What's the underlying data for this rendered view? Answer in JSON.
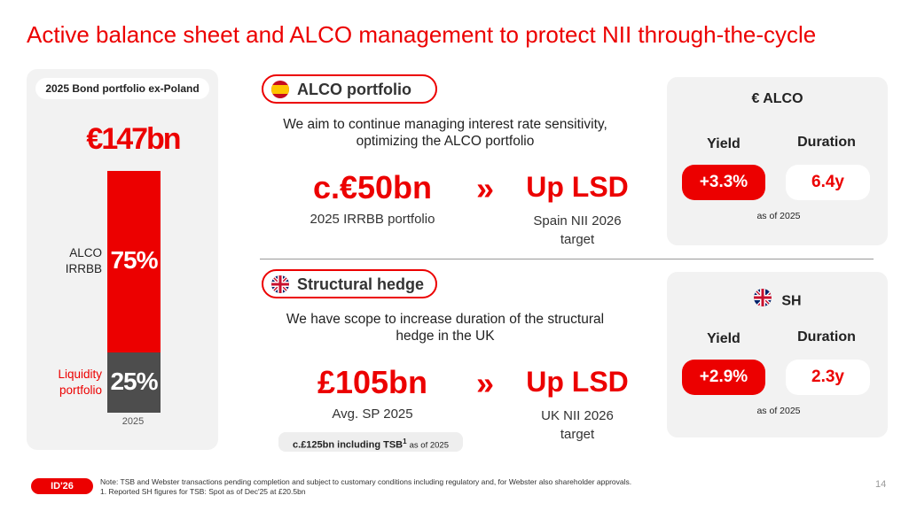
{
  "header": {
    "title": "Active balance sheet and ALCO management to protect NII through-the-cycle"
  },
  "portfolio_chart": {
    "title": "2025 Bond portfolio ex-Poland",
    "total": "€147bn",
    "categories": [
      "2025"
    ],
    "series": [
      {
        "name": "Liquidity portfolio",
        "color": "#4d4d4d",
        "values": [
          25
        ],
        "value_labels": [
          "25%"
        ]
      },
      {
        "name": "ALCO IRRBB",
        "color": "#ec0000",
        "values": [
          75
        ],
        "value_labels": [
          "75%"
        ]
      }
    ]
  },
  "sections": [
    {
      "pill": "ALCO portfolio",
      "text": "We aim to continue managing interest rate sensitivity, optimizing the ALCO portfolio",
      "big_value": "c.€50bn",
      "big_caption": "2025 IRRBB portfolio",
      "arrow": "»",
      "target": "Up LSD",
      "target_caption": "Spain NII 2026 target",
      "box": {
        "title": "€ ALCO",
        "yield_label": "Yield",
        "duration_label": "Duration",
        "yield": "+3.3%",
        "duration": "6.4y",
        "date": "as of 2025"
      }
    },
    {
      "pill": "Structural hedge",
      "text": "We have scope to increase duration of the structural hedge in the UK",
      "big_value": "£105bn",
      "big_caption": "Avg. SP 2025",
      "arrow": "»",
      "target": "Up LSD",
      "target_caption": "UK NII 2026 target",
      "note_main": "c.£125bn including TSB",
      "note_sup": "1",
      "note_suffix": "as of 2025",
      "box": {
        "title": "SH",
        "yield_label": "Yield",
        "duration_label": "Duration",
        "yield": "+2.9%",
        "duration": "2.3y",
        "date": "as of 2025"
      }
    }
  ],
  "footer": {
    "logo": "ID'26",
    "notes": [
      "Note: TSB and Webster transactions pending completion and subject to customary conditions including regulatory and, for Webster also shareholder approvals.",
      "1.  Reported SH figures for TSB: Spot as of Dec'25 at £20.5bn"
    ],
    "page": "14"
  }
}
